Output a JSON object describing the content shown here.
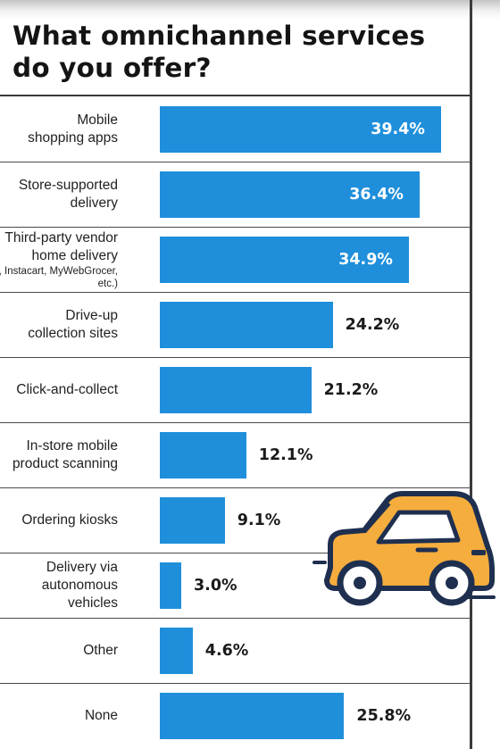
{
  "title": "What omnichannel services do you offer?",
  "chart_data": {
    "type": "bar",
    "orientation": "horizontal",
    "title": "What omnichannel services do you offer?",
    "unit": "%",
    "categories": [
      {
        "label": "Mobile shopping apps",
        "note": "",
        "value": 39.4,
        "value_label": "39.4%"
      },
      {
        "label": "Store-supported delivery",
        "note": "",
        "value": 36.4,
        "value_label": "36.4%"
      },
      {
        "label": "Third-party vendor home delivery",
        "note": "(e.g., Instacart, MyWebGrocer, etc.)",
        "value": 34.9,
        "value_label": "34.9%"
      },
      {
        "label": "Drive-up collection sites",
        "note": "",
        "value": 24.2,
        "value_label": "24.2%"
      },
      {
        "label": "Click-and-collect",
        "note": "",
        "value": 21.2,
        "value_label": "21.2%"
      },
      {
        "label": "In-store mobile product scanning",
        "note": "",
        "value": 12.1,
        "value_label": "12.1%"
      },
      {
        "label": "Ordering kiosks",
        "note": "",
        "value": 9.1,
        "value_label": "9.1%"
      },
      {
        "label": "Delivery via autonomous vehicles",
        "note": "",
        "value": 3.0,
        "value_label": "3.0%"
      },
      {
        "label": "Other",
        "note": "",
        "value": 4.6,
        "value_label": "4.6%"
      },
      {
        "label": "None",
        "note": "",
        "value": 25.8,
        "value_label": "25.8%"
      }
    ],
    "xlim": [
      0,
      40
    ],
    "grid": false,
    "legend": "none",
    "bar_color": "#1f8fdb",
    "decoration_icon": "car-icon"
  }
}
